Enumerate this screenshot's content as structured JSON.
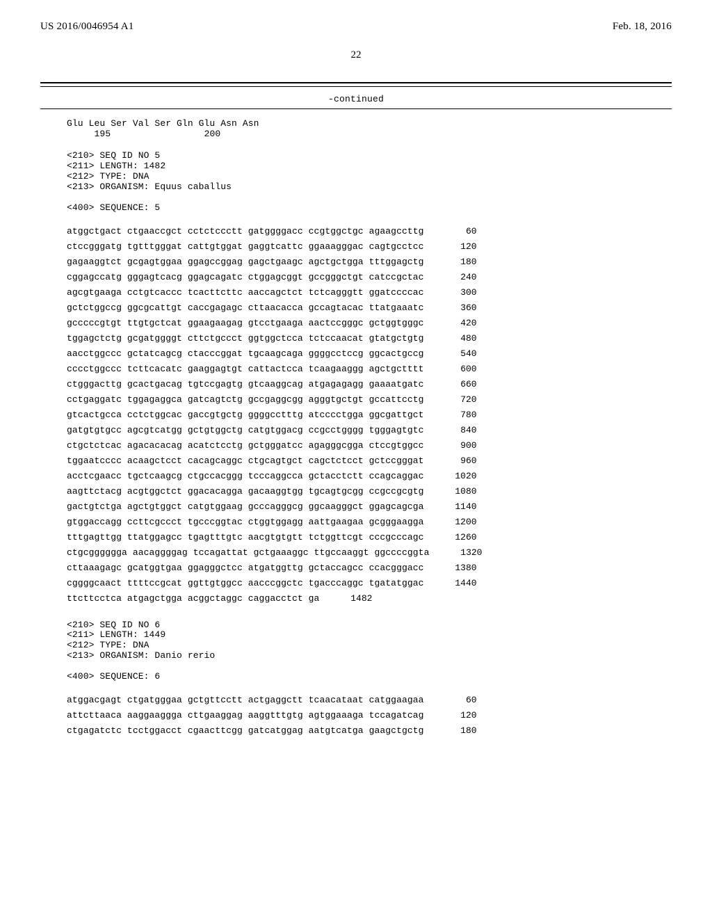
{
  "header": {
    "publication_number": "US 2016/0046954 A1",
    "publication_date": "Feb. 18, 2016",
    "page_number": "22",
    "continued_label": "-continued"
  },
  "protein_tail": {
    "residues": "Glu Leu Ser Val Ser Gln Glu Asn Asn",
    "pos_left": "195",
    "pos_right": "200"
  },
  "seq5_meta": {
    "l1": "<210> SEQ ID NO 5",
    "l2": "<211> LENGTH: 1482",
    "l3": "<212> TYPE: DNA",
    "l4": "<213> ORGANISM: Equus caballus",
    "l5": "<400> SEQUENCE: 5"
  },
  "seq5_rows": [
    {
      "g": "atggctgact ctgaaccgct cctctccctt gatggggacc ccgtggctgc agaagccttg",
      "p": "60"
    },
    {
      "g": "ctccgggatg tgtttgggat cattgtggat gaggtcattc ggaaagggac cagtgcctcc",
      "p": "120"
    },
    {
      "g": "gagaaggtct gcgagtggaa ggagccggag gagctgaagc agctgctgga tttggagctg",
      "p": "180"
    },
    {
      "g": "cggagccatg gggagtcacg ggagcagatc ctggagcggt gccgggctgt catccgctac",
      "p": "240"
    },
    {
      "g": "agcgtgaaga cctgtcaccc tcacttcttc aaccagctct tctcagggtt ggatccccac",
      "p": "300"
    },
    {
      "g": "gctctggccg ggcgcattgt caccgagagc cttaacacca gccagtacac ttatgaaatc",
      "p": "360"
    },
    {
      "g": "gcccccgtgt ttgtgctcat ggaagaagag gtcctgaaga aactccgggc gctggtgggc",
      "p": "420"
    },
    {
      "g": "tggagctctg gcgatggggt cttctgccct ggtggctcca tctccaacat gtatgctgtg",
      "p": "480"
    },
    {
      "g": "aacctggccc gctatcagcg ctacccggat tgcaagcaga ggggcctccg ggcactgccg",
      "p": "540"
    },
    {
      "g": "cccctggccc tcttcacatc gaaggagtgt cattactcca tcaagaaggg agctgctttt",
      "p": "600"
    },
    {
      "g": "ctgggacttg gcactgacag tgtccgagtg gtcaaggcag atgagagagg gaaaatgatc",
      "p": "660"
    },
    {
      "g": "cctgaggatc tggagaggca gatcagtctg gccgaggcgg agggtgctgt gccattcctg",
      "p": "720"
    },
    {
      "g": "gtcactgcca cctctggcac gaccgtgctg ggggcctttg atcccctgga ggcgattgct",
      "p": "780"
    },
    {
      "g": "gatgtgtgcc agcgtcatgg gctgtggctg catgtggacg ccgcctgggg tgggagtgtc",
      "p": "840"
    },
    {
      "g": "ctgctctcac agacacacag acatctcctg gctgggatcc agagggcgga ctccgtggcc",
      "p": "900"
    },
    {
      "g": "tggaatcccc acaagctcct cacagcaggc ctgcagtgct cagctctcct gctccgggat",
      "p": "960"
    },
    {
      "g": "acctcgaacc tgctcaagcg ctgccacggg tcccaggcca gctacctctt ccagcaggac",
      "p": "1020"
    },
    {
      "g": "aagttctacg acgtggctct ggacacagga gacaaggtgg tgcagtgcgg ccgccgcgtg",
      "p": "1080"
    },
    {
      "g": "gactgtctga agctgtggct catgtggaag gcccagggcg ggcaagggct ggagcagcga",
      "p": "1140"
    },
    {
      "g": "gtggaccagg ccttcgccct tgcccggtac ctggtggagg aattgaagaa gcgggaagga",
      "p": "1200"
    },
    {
      "g": "tttgagttgg ttatggagcc tgagtttgtc aacgtgtgtt tctggttcgt cccgcccagc",
      "p": "1260"
    },
    {
      "g": "ctgcgggggga aacaggggag tccagattat gctgaaaggc ttgccaaggt ggccccggta",
      "p": "1320"
    },
    {
      "g": "cttaaagagc gcatggtgaa ggagggctcc atgatggttg gctaccagcc ccacgggacc",
      "p": "1380"
    },
    {
      "g": "cggggcaact ttttccgcat ggttgtggcc aacccggctc tgacccaggc tgatatggac",
      "p": "1440"
    },
    {
      "g": "ttcttcctca atgagctgga acggctaggc caggacctct ga",
      "p": "1482"
    }
  ],
  "seq6_meta": {
    "l1": "<210> SEQ ID NO 6",
    "l2": "<211> LENGTH: 1449",
    "l3": "<212> TYPE: DNA",
    "l4": "<213> ORGANISM: Danio rerio",
    "l5": "<400> SEQUENCE: 6"
  },
  "seq6_rows": [
    {
      "g": "atggacgagt ctgatgggaa gctgttcctt actgaggctt tcaacataat catggaagaa",
      "p": "60"
    },
    {
      "g": "attcttaaca aaggaaggga cttgaaggag aaggtttgtg agtggaaaga tccagatcag",
      "p": "120"
    },
    {
      "g": "ctgagatctc tcctggacct cgaacttcgg gatcatggag aatgtcatga gaagctgctg",
      "p": "180"
    }
  ]
}
